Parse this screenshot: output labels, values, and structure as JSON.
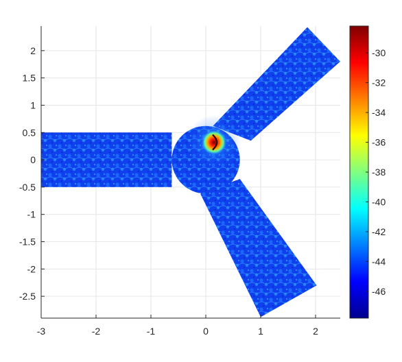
{
  "chart_data": {
    "type": "heatmap",
    "title": "",
    "xlabel": "",
    "ylabel": "",
    "xlim": [
      -3,
      2.45
    ],
    "ylim": [
      -2.9,
      2.45
    ],
    "grid": true,
    "xticks": [
      -3,
      -2,
      -1,
      0,
      1,
      2
    ],
    "xtick_labels": [
      "-3",
      "-2",
      "-1",
      "0",
      "1",
      "2"
    ],
    "yticks": [
      2,
      1.5,
      1,
      0.5,
      0,
      -0.5,
      -1,
      -1.5,
      -2,
      -2.5
    ],
    "ytick_labels": [
      "2",
      "1.5",
      "1",
      "0.5",
      "0",
      "-0.5",
      "-1",
      "-1.5",
      "-2",
      "-2.5"
    ],
    "colorbar": {
      "colormap": "jet",
      "limits": [
        -47.8,
        -28.2
      ],
      "ticks": [
        -30,
        -32,
        -34,
        -36,
        -38,
        -40,
        -42,
        -44,
        -46
      ],
      "tick_labels": [
        "-30",
        "-32",
        "-34",
        "-36",
        "-38",
        "-40",
        "-42",
        "-44",
        "-46"
      ]
    },
    "domain": {
      "shape": "three-arm junction (Y-splitter)",
      "center_disk": {
        "center": [
          0,
          0
        ],
        "radius": 0.62
      },
      "arms": [
        {
          "name": "left arm",
          "corners": [
            [
              -3,
              0.5
            ],
            [
              -0.62,
              0.5
            ],
            [
              -0.62,
              -0.5
            ],
            [
              -3,
              -0.5
            ]
          ]
        },
        {
          "name": "upper-right arm",
          "corners": [
            [
              0.13,
              0.62
            ],
            [
              0.82,
              0.35
            ],
            [
              2.45,
              1.8
            ],
            [
              1.85,
              2.43
            ]
          ]
        },
        {
          "name": "lower-right arm",
          "corners": [
            [
              0.62,
              -0.35
            ],
            [
              -0.1,
              -0.62
            ],
            [
              1.0,
              -2.88
            ],
            [
              2.02,
              -2.3
            ]
          ]
        }
      ]
    },
    "source": {
      "label": "source hotspot",
      "center": [
        0.15,
        0.32
      ],
      "peak_value": -28.5,
      "background_value": -45
    }
  }
}
